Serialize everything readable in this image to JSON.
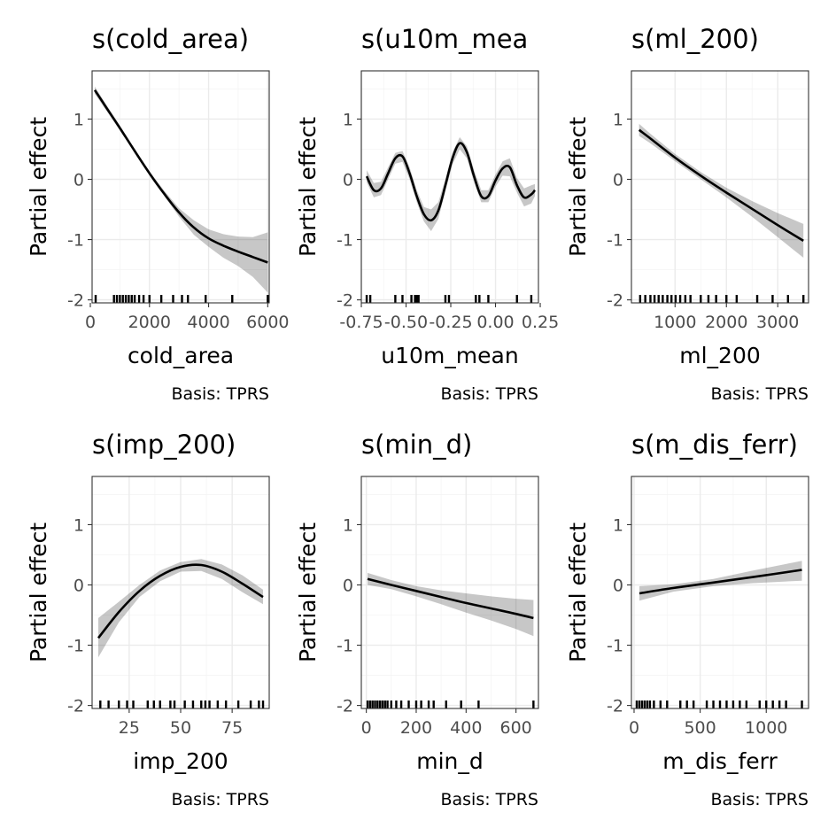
{
  "chart_data": [
    {
      "type": "line",
      "title": "s(cold_area)",
      "xlabel": "cold_area",
      "ylabel": "Partial effect",
      "caption": "Basis: TPRS",
      "xlim": [
        60,
        6050
      ],
      "ylim": [
        -2.05,
        1.8
      ],
      "xticks": [
        0,
        2000,
        4000,
        6000
      ],
      "xtick_labels": [
        "0",
        "2000",
        "4000",
        "6000"
      ],
      "yticks": [
        -2,
        -1,
        0,
        1
      ],
      "ytick_labels": [
        "-2",
        "-1",
        "0",
        "1"
      ],
      "x": [
        150,
        500,
        1000,
        1500,
        2000,
        2500,
        3000,
        3500,
        4000,
        4500,
        5000,
        5500,
        6000
      ],
      "y": [
        1.48,
        1.22,
        0.85,
        0.47,
        0.1,
        -0.24,
        -0.55,
        -0.8,
        -0.98,
        -1.1,
        -1.2,
        -1.29,
        -1.38
      ],
      "lower": [
        1.42,
        1.17,
        0.81,
        0.44,
        0.07,
        -0.28,
        -0.62,
        -0.92,
        -1.12,
        -1.3,
        -1.44,
        -1.62,
        -1.88
      ],
      "upper": [
        1.54,
        1.27,
        0.89,
        0.5,
        0.13,
        -0.19,
        -0.48,
        -0.68,
        -0.83,
        -0.91,
        -0.95,
        -0.96,
        -0.88
      ],
      "rug": [
        180,
        800,
        900,
        1000,
        1100,
        1200,
        1300,
        1400,
        1500,
        1650,
        1800,
        2000,
        2400,
        2800,
        3100,
        3300,
        3900,
        4800,
        6000
      ]
    },
    {
      "type": "line",
      "title": "s(u10m_mea",
      "xlabel": "u10m_mean",
      "ylabel": "Partial effect",
      "caption": "Basis: TPRS",
      "xlim": [
        -0.75,
        0.24
      ],
      "ylim": [
        -2.05,
        1.8
      ],
      "xticks": [
        -0.75,
        -0.5,
        -0.25,
        0.0,
        0.25
      ],
      "xtick_labels": [
        "-0.75",
        "-0.50",
        "-0.25",
        "0.00",
        "0.25"
      ],
      "yticks": [
        -2,
        -1,
        0,
        1
      ],
      "ytick_labels": [
        "-2",
        "-1",
        "0",
        "1"
      ],
      "x": [
        -0.72,
        -0.68,
        -0.64,
        -0.6,
        -0.56,
        -0.52,
        -0.48,
        -0.44,
        -0.4,
        -0.36,
        -0.32,
        -0.28,
        -0.24,
        -0.2,
        -0.16,
        -0.12,
        -0.08,
        -0.04,
        0.0,
        0.04,
        0.08,
        0.12,
        0.16,
        0.2,
        0.22
      ],
      "y": [
        0.05,
        -0.18,
        -0.15,
        0.1,
        0.35,
        0.38,
        0.1,
        -0.28,
        -0.58,
        -0.68,
        -0.52,
        -0.1,
        0.35,
        0.6,
        0.45,
        0.05,
        -0.28,
        -0.28,
        -0.02,
        0.18,
        0.2,
        -0.1,
        -0.3,
        -0.25,
        -0.18
      ],
      "lower": [
        -0.05,
        -0.3,
        -0.26,
        0.0,
        0.26,
        0.29,
        0.0,
        -0.38,
        -0.7,
        -0.86,
        -0.66,
        -0.2,
        0.25,
        0.5,
        0.35,
        -0.05,
        -0.38,
        -0.38,
        -0.12,
        0.06,
        0.05,
        -0.22,
        -0.45,
        -0.4,
        -0.28
      ],
      "upper": [
        0.15,
        -0.06,
        -0.04,
        0.2,
        0.44,
        0.47,
        0.2,
        -0.18,
        -0.46,
        -0.5,
        -0.38,
        0.0,
        0.45,
        0.7,
        0.55,
        0.15,
        -0.18,
        -0.18,
        0.08,
        0.3,
        0.35,
        0.02,
        -0.15,
        -0.1,
        -0.08
      ],
      "rug": [
        -0.72,
        -0.7,
        -0.56,
        -0.52,
        -0.47,
        -0.45,
        -0.44,
        -0.43,
        -0.28,
        -0.26,
        -0.11,
        -0.09,
        -0.04,
        0.12,
        0.2
      ]
    },
    {
      "type": "line",
      "title": "s(ml_200)",
      "xlabel": "ml_200",
      "ylabel": "Partial effect",
      "caption": "Basis: TPRS",
      "xlim": [
        150,
        3600
      ],
      "ylim": [
        -2.05,
        1.8
      ],
      "xticks": [
        1000,
        2000,
        3000
      ],
      "xtick_labels": [
        "1000",
        "2000",
        "3000"
      ],
      "yticks": [
        -2,
        -1,
        0,
        1
      ],
      "ytick_labels": [
        "-2",
        "-1",
        "0",
        "1"
      ],
      "x": [
        300,
        500,
        1000,
        1500,
        2000,
        2500,
        3000,
        3500
      ],
      "y": [
        0.82,
        0.69,
        0.36,
        0.06,
        -0.22,
        -0.49,
        -0.76,
        -1.02
      ],
      "lower": [
        0.72,
        0.61,
        0.3,
        0.0,
        -0.3,
        -0.62,
        -0.96,
        -1.3
      ],
      "upper": [
        0.92,
        0.77,
        0.42,
        0.12,
        -0.14,
        -0.36,
        -0.56,
        -0.74
      ],
      "rug": [
        320,
        420,
        520,
        600,
        680,
        760,
        850,
        930,
        1010,
        1100,
        1200,
        1300,
        1500,
        1650,
        1800,
        2000,
        2200,
        2600,
        2900,
        3200,
        3500
      ]
    },
    {
      "type": "line",
      "title": "s(imp_200)",
      "xlabel": "imp_200",
      "ylabel": "Partial effect",
      "caption": "Basis: TPRS",
      "xlim": [
        7,
        93
      ],
      "ylim": [
        -2.05,
        1.8
      ],
      "xticks": [
        25,
        50,
        75
      ],
      "xtick_labels": [
        "25",
        "50",
        "75"
      ],
      "yticks": [
        -2,
        -1,
        0,
        1
      ],
      "ytick_labels": [
        "-2",
        "-1",
        "0",
        "1"
      ],
      "x": [
        10,
        20,
        30,
        40,
        50,
        60,
        70,
        80,
        90
      ],
      "y": [
        -0.88,
        -0.45,
        -0.1,
        0.15,
        0.3,
        0.33,
        0.22,
        0.02,
        -0.2
      ],
      "lower": [
        -1.2,
        -0.62,
        -0.2,
        0.06,
        0.22,
        0.23,
        0.1,
        -0.12,
        -0.32
      ],
      "upper": [
        -0.55,
        -0.28,
        0.0,
        0.24,
        0.38,
        0.43,
        0.34,
        0.16,
        -0.08
      ],
      "rug": [
        11,
        15,
        20,
        24,
        27,
        34,
        37,
        40,
        45,
        47,
        52,
        56,
        60,
        62,
        64,
        68,
        72,
        78,
        84,
        88,
        90
      ]
    },
    {
      "type": "line",
      "title": "s(min_d)",
      "xlabel": "min_d",
      "ylabel": "Partial effect",
      "caption": "Basis: TPRS",
      "xlim": [
        -20,
        690
      ],
      "ylim": [
        -2.05,
        1.8
      ],
      "xticks": [
        0,
        200,
        400,
        600
      ],
      "xtick_labels": [
        "0",
        "200",
        "400",
        "600"
      ],
      "yticks": [
        -2,
        -1,
        0,
        1
      ],
      "ytick_labels": [
        "-2",
        "-1",
        "0",
        "1"
      ],
      "x": [
        5,
        100,
        200,
        300,
        400,
        500,
        600,
        670
      ],
      "y": [
        0.1,
        0.0,
        -0.1,
        -0.2,
        -0.3,
        -0.39,
        -0.48,
        -0.55
      ],
      "lower": [
        0.0,
        -0.07,
        -0.19,
        -0.32,
        -0.46,
        -0.59,
        -0.73,
        -0.85
      ],
      "upper": [
        0.2,
        0.08,
        -0.02,
        -0.09,
        -0.14,
        -0.19,
        -0.23,
        -0.25
      ],
      "rug": [
        5,
        15,
        25,
        35,
        45,
        55,
        65,
        75,
        85,
        100,
        120,
        140,
        170,
        200,
        220,
        250,
        270,
        320,
        380,
        450,
        670
      ]
    },
    {
      "type": "line",
      "title": "s(m_dis_ferr)",
      "xlabel": "m_dis_ferr",
      "ylabel": "Partial effect",
      "caption": "Basis: TPRS",
      "xlim": [
        -20,
        1320
      ],
      "ylim": [
        -2.05,
        1.8
      ],
      "xticks": [
        0,
        500,
        1000
      ],
      "xtick_labels": [
        "0",
        "500",
        "1000"
      ],
      "yticks": [
        -2,
        -1,
        0,
        1
      ],
      "ytick_labels": [
        "-2",
        "-1",
        "0",
        "1"
      ],
      "x": [
        40,
        300,
        600,
        900,
        1270
      ],
      "y": [
        -0.14,
        -0.05,
        0.04,
        0.13,
        0.25
      ],
      "lower": [
        -0.26,
        -0.11,
        -0.02,
        0.03,
        0.07
      ],
      "upper": [
        -0.02,
        0.01,
        0.1,
        0.24,
        0.4
      ],
      "rug": [
        20,
        40,
        60,
        80,
        100,
        120,
        150,
        200,
        250,
        350,
        400,
        450,
        550,
        600,
        650,
        700,
        750,
        800,
        850,
        950,
        1000,
        1050,
        1100,
        1150,
        1270
      ]
    }
  ]
}
